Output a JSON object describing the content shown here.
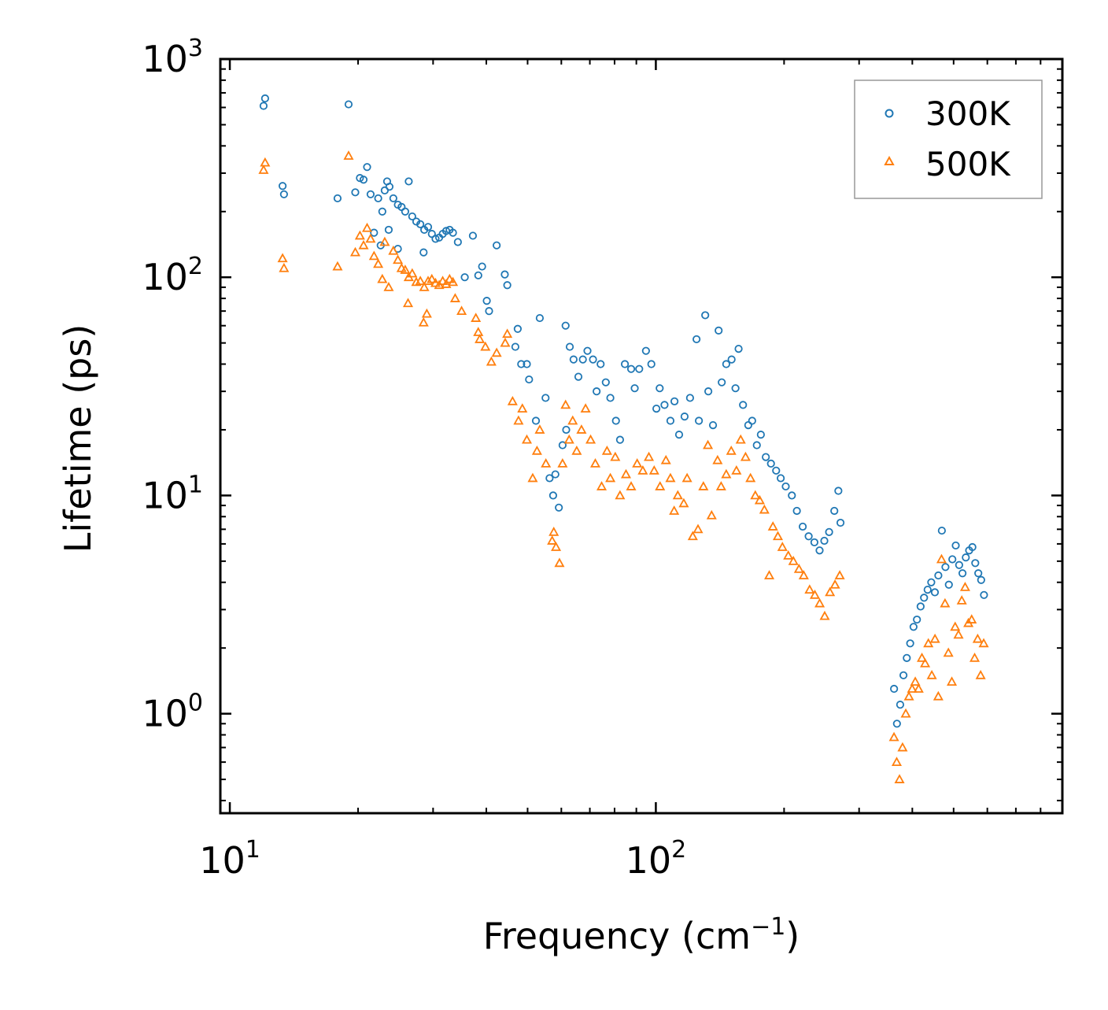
{
  "chart_data": {
    "type": "scatter",
    "xscale": "log",
    "yscale": "log",
    "xlim": [
      9.5,
      900
    ],
    "ylim": [
      0.35,
      1000
    ],
    "xlabel": {
      "base": "Frequency (cm",
      "exp": "−1",
      "close": ")"
    },
    "ylabel": "Lifetime (ps)",
    "xticks": [
      {
        "value": 10,
        "base": "10",
        "exp": "1"
      },
      {
        "value": 100,
        "base": "10",
        "exp": "2"
      }
    ],
    "yticks": [
      {
        "value": 1,
        "base": "10",
        "exp": "0"
      },
      {
        "value": 10,
        "base": "10",
        "exp": "1"
      },
      {
        "value": 100,
        "base": "10",
        "exp": "2"
      },
      {
        "value": 1000,
        "base": "10",
        "exp": "3"
      }
    ],
    "legend": {
      "placement": "top-right"
    },
    "colors": {
      "s300": "#1f77b4",
      "s500": "#ff7f0e",
      "axis": "#000000",
      "legend_border": "#999999"
    },
    "series": [
      {
        "name": "300K",
        "marker": "circle",
        "color": "#1f77b4",
        "points": [
          [
            12,
            610
          ],
          [
            12.1,
            660
          ],
          [
            13.3,
            262
          ],
          [
            13.4,
            240
          ],
          [
            17.9,
            230
          ],
          [
            19,
            620
          ],
          [
            19.7,
            245
          ],
          [
            20.2,
            285
          ],
          [
            20.6,
            280
          ],
          [
            21,
            320
          ],
          [
            21.4,
            240
          ],
          [
            21.8,
            160
          ],
          [
            22.3,
            230
          ],
          [
            22.8,
            200
          ],
          [
            23.1,
            250
          ],
          [
            23.4,
            275
          ],
          [
            23.7,
            260
          ],
          [
            24.2,
            230
          ],
          [
            24.8,
            215
          ],
          [
            25.3,
            210
          ],
          [
            25.8,
            200
          ],
          [
            26.3,
            275
          ],
          [
            26.8,
            190
          ],
          [
            27.4,
            180
          ],
          [
            28,
            175
          ],
          [
            28.6,
            165
          ],
          [
            29.2,
            170
          ],
          [
            29.8,
            158
          ],
          [
            30.4,
            150
          ],
          [
            31,
            152
          ],
          [
            31.6,
            158
          ],
          [
            32.2,
            163
          ],
          [
            32.8,
            165
          ],
          [
            33.4,
            160
          ],
          [
            28.5,
            130
          ],
          [
            24.8,
            135
          ],
          [
            23.6,
            165
          ],
          [
            22.6,
            140
          ],
          [
            34.3,
            145
          ],
          [
            35.6,
            100
          ],
          [
            37.2,
            155
          ],
          [
            38.3,
            102
          ],
          [
            39.1,
            112
          ],
          [
            40.1,
            78
          ],
          [
            40.6,
            70
          ],
          [
            42.3,
            140
          ],
          [
            44.2,
            103
          ],
          [
            44.8,
            92
          ],
          [
            46.8,
            48
          ],
          [
            47.4,
            58
          ],
          [
            48.3,
            40
          ],
          [
            49.8,
            40
          ],
          [
            50.4,
            34
          ],
          [
            52.3,
            22
          ],
          [
            53.4,
            65
          ],
          [
            55.1,
            28
          ],
          [
            56.3,
            12
          ],
          [
            57.4,
            10
          ],
          [
            58.1,
            12.5
          ],
          [
            59.2,
            8.8
          ],
          [
            60.4,
            17
          ],
          [
            61.6,
            20
          ],
          [
            61.4,
            60
          ],
          [
            62.8,
            48
          ],
          [
            64.1,
            42
          ],
          [
            65.8,
            35
          ],
          [
            67.4,
            42
          ],
          [
            69.1,
            46
          ],
          [
            71.2,
            42
          ],
          [
            72.6,
            30
          ],
          [
            74.2,
            40
          ],
          [
            76.3,
            33
          ],
          [
            78.2,
            28
          ],
          [
            80.6,
            22
          ],
          [
            82.4,
            18
          ],
          [
            84.6,
            40
          ],
          [
            87.5,
            38
          ],
          [
            89.2,
            31
          ],
          [
            91.4,
            38
          ],
          [
            94.8,
            46
          ],
          [
            97.6,
            40
          ],
          [
            100.3,
            25
          ],
          [
            102.1,
            31
          ],
          [
            104.8,
            26
          ],
          [
            108.2,
            22
          ],
          [
            110.6,
            27
          ],
          [
            113.4,
            19
          ],
          [
            116.8,
            23
          ],
          [
            120.3,
            28
          ],
          [
            124.6,
            52
          ],
          [
            126.2,
            22
          ],
          [
            130.6,
            67
          ],
          [
            132.8,
            30
          ],
          [
            136.2,
            21
          ],
          [
            140.4,
            57
          ],
          [
            142.8,
            33
          ],
          [
            146.3,
            40
          ],
          [
            150.6,
            42
          ],
          [
            153.8,
            31
          ],
          [
            156.4,
            47
          ],
          [
            160.2,
            26
          ],
          [
            164.8,
            21
          ],
          [
            168.3,
            22
          ],
          [
            172.6,
            17
          ],
          [
            176.4,
            19
          ],
          [
            181.2,
            15
          ],
          [
            186.3,
            14
          ],
          [
            191.6,
            13
          ],
          [
            196.4,
            12
          ],
          [
            201.8,
            11
          ],
          [
            208.6,
            10
          ],
          [
            214.3,
            8.5
          ],
          [
            221.2,
            7.2
          ],
          [
            228.4,
            6.5
          ],
          [
            235.6,
            6.1
          ],
          [
            242.3,
            5.6
          ],
          [
            248.6,
            6.2
          ],
          [
            255.1,
            6.8
          ],
          [
            262.4,
            8.5
          ],
          [
            268.2,
            10.5
          ],
          [
            271.3,
            7.5
          ],
          [
            362.4,
            1.3
          ],
          [
            368.1,
            0.9
          ],
          [
            374.6,
            1.1
          ],
          [
            381.3,
            1.5
          ],
          [
            388.2,
            1.8
          ],
          [
            395.4,
            2.1
          ],
          [
            402.6,
            2.5
          ],
          [
            410.1,
            2.7
          ],
          [
            418.3,
            3.1
          ],
          [
            426.2,
            3.4
          ],
          [
            434.5,
            3.7
          ],
          [
            443.1,
            4.0
          ],
          [
            451.8,
            3.6
          ],
          [
            460.4,
            4.3
          ],
          [
            469.2,
            6.9
          ],
          [
            478.4,
            4.7
          ],
          [
            487.3,
            3.9
          ],
          [
            496.6,
            5.1
          ],
          [
            505.8,
            5.9
          ],
          [
            515.2,
            4.8
          ],
          [
            524.6,
            4.4
          ],
          [
            534.1,
            5.2
          ],
          [
            543.8,
            5.6
          ],
          [
            553.4,
            5.8
          ],
          [
            562.1,
            4.9
          ],
          [
            571.4,
            4.4
          ],
          [
            580.3,
            4.1
          ],
          [
            589.2,
            3.5
          ]
        ]
      },
      {
        "name": "500K",
        "marker": "triangle",
        "color": "#ff7f0e",
        "points": [
          [
            12,
            310
          ],
          [
            12.1,
            335
          ],
          [
            13.3,
            122
          ],
          [
            13.4,
            110
          ],
          [
            17.9,
            112
          ],
          [
            19,
            360
          ],
          [
            19.7,
            130
          ],
          [
            20.2,
            155
          ],
          [
            20.6,
            140
          ],
          [
            21,
            168
          ],
          [
            21.4,
            150
          ],
          [
            21.8,
            125
          ],
          [
            22.3,
            115
          ],
          [
            22.8,
            98
          ],
          [
            23.1,
            145
          ],
          [
            23.6,
            90
          ],
          [
            24.2,
            132
          ],
          [
            24.8,
            120
          ],
          [
            25.3,
            110
          ],
          [
            25.8,
            108
          ],
          [
            26.3,
            100
          ],
          [
            26.8,
            104
          ],
          [
            27.4,
            95
          ],
          [
            28,
            96
          ],
          [
            28.6,
            90
          ],
          [
            29.2,
            96
          ],
          [
            29.8,
            98
          ],
          [
            30.4,
            94
          ],
          [
            31,
            92
          ],
          [
            31.6,
            96
          ],
          [
            32.2,
            93
          ],
          [
            32.8,
            98
          ],
          [
            33.4,
            95
          ],
          [
            26.2,
            76
          ],
          [
            28.5,
            62
          ],
          [
            29,
            68
          ],
          [
            33.8,
            80
          ],
          [
            35,
            70
          ],
          [
            37.8,
            65
          ],
          [
            38.3,
            56
          ],
          [
            38.6,
            52
          ],
          [
            39.8,
            48
          ],
          [
            41.1,
            41
          ],
          [
            42.3,
            45
          ],
          [
            44.3,
            50
          ],
          [
            44.8,
            55
          ],
          [
            46.1,
            27
          ],
          [
            47.6,
            22
          ],
          [
            48.6,
            25
          ],
          [
            49.8,
            18
          ],
          [
            51.4,
            12
          ],
          [
            52.6,
            16
          ],
          [
            53.4,
            20
          ],
          [
            55.2,
            14
          ],
          [
            57.1,
            6.2
          ],
          [
            57.6,
            6.8
          ],
          [
            58.3,
            5.8
          ],
          [
            59.4,
            4.9
          ],
          [
            60.4,
            14
          ],
          [
            61.4,
            26
          ],
          [
            62.6,
            18
          ],
          [
            63.8,
            22
          ],
          [
            65.2,
            16
          ],
          [
            66.9,
            20
          ],
          [
            68.4,
            25
          ],
          [
            70.3,
            18
          ],
          [
            72.1,
            14
          ],
          [
            74.6,
            11
          ],
          [
            76.8,
            16
          ],
          [
            78.2,
            12
          ],
          [
            80.3,
            15
          ],
          [
            82.4,
            10
          ],
          [
            85.1,
            12.5
          ],
          [
            87.5,
            11
          ],
          [
            90.4,
            14
          ],
          [
            93.2,
            13
          ],
          [
            96.3,
            15
          ],
          [
            99.1,
            13
          ],
          [
            102.3,
            11
          ],
          [
            105.6,
            14.5
          ],
          [
            108.2,
            12
          ],
          [
            110.4,
            8.5
          ],
          [
            112.6,
            10
          ],
          [
            116.3,
            9.2
          ],
          [
            118.4,
            12
          ],
          [
            122.1,
            6.5
          ],
          [
            125.6,
            7
          ],
          [
            129.3,
            11
          ],
          [
            132.5,
            17
          ],
          [
            135.2,
            8.1
          ],
          [
            139.6,
            14.5
          ],
          [
            142.3,
            11
          ],
          [
            146.3,
            12.5
          ],
          [
            150.3,
            16
          ],
          [
            154.6,
            13
          ],
          [
            158.2,
            18
          ],
          [
            162.4,
            15
          ],
          [
            166.8,
            12
          ],
          [
            171.2,
            10
          ],
          [
            175.3,
            9.5
          ],
          [
            179.8,
            8.6
          ],
          [
            184.6,
            4.3
          ],
          [
            188.3,
            7.2
          ],
          [
            193.4,
            6.5
          ],
          [
            198.2,
            5.8
          ],
          [
            204.6,
            5.3
          ],
          [
            210.3,
            5.0
          ],
          [
            216.8,
            4.6
          ],
          [
            222.4,
            4.3
          ],
          [
            229.6,
            3.7
          ],
          [
            236.2,
            3.5
          ],
          [
            242.4,
            3.2
          ],
          [
            249.1,
            2.8
          ],
          [
            256.3,
            3.6
          ],
          [
            263.4,
            3.9
          ],
          [
            270.2,
            4.3
          ],
          [
            362.3,
            0.78
          ],
          [
            367.6,
            0.6
          ],
          [
            373.2,
            0.5
          ],
          [
            379.4,
            0.7
          ],
          [
            386.1,
            1.0
          ],
          [
            392.8,
            1.2
          ],
          [
            399.6,
            1.3
          ],
          [
            406.4,
            1.4
          ],
          [
            413.8,
            1.3
          ],
          [
            421.3,
            1.8
          ],
          [
            428.6,
            1.7
          ],
          [
            436.2,
            2.1
          ],
          [
            444.4,
            1.5
          ],
          [
            452.1,
            2.2
          ],
          [
            460.3,
            1.2
          ],
          [
            468.4,
            5.1
          ],
          [
            477.3,
            3.2
          ],
          [
            486.1,
            1.9
          ],
          [
            495.2,
            1.4
          ],
          [
            504.2,
            2.5
          ],
          [
            513.4,
            2.3
          ],
          [
            522.6,
            3.3
          ],
          [
            532.1,
            3.8
          ],
          [
            541.6,
            2.6
          ],
          [
            551.3,
            2.7
          ],
          [
            560.2,
            1.8
          ],
          [
            569.4,
            2.2
          ],
          [
            578.6,
            1.5
          ],
          [
            588.3,
            2.1
          ]
        ]
      }
    ]
  }
}
